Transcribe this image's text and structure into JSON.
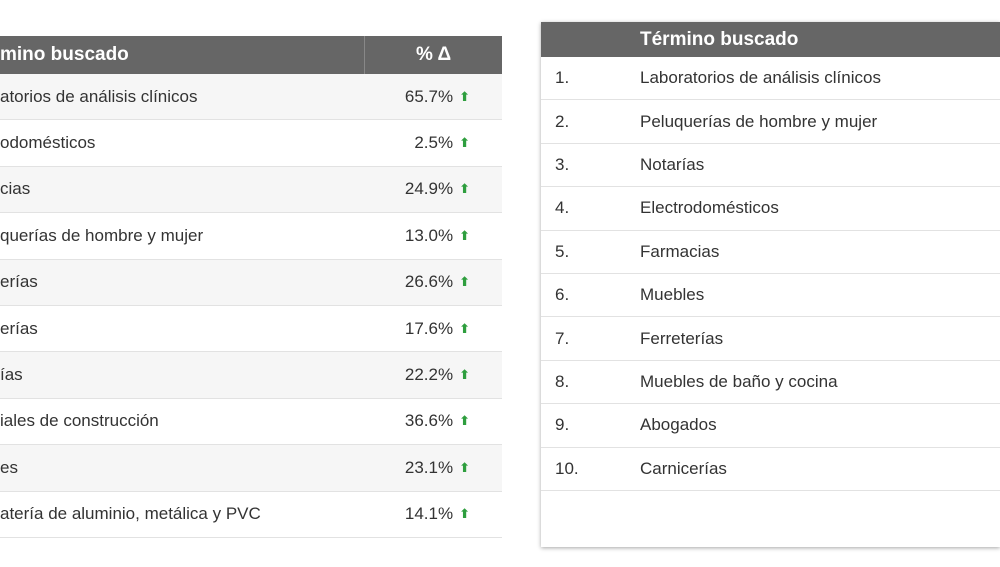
{
  "left_table": {
    "header": [
      "mino buscado",
      "% Δ"
    ],
    "rows": [
      [
        "atorios de análisis clínicos",
        "65.7%"
      ],
      [
        "odomésticos",
        "2.5%"
      ],
      [
        "cias",
        "24.9%"
      ],
      [
        "querías de hombre y mujer",
        "13.0%"
      ],
      [
        "erías",
        "26.6%"
      ],
      [
        "erías",
        "17.6%"
      ],
      [
        "ías",
        "22.2%"
      ],
      [
        "iales de construcción",
        "36.6%"
      ],
      [
        "es",
        "23.1%"
      ],
      [
        "atería de aluminio, metálica y PVC",
        "14.1%"
      ]
    ]
  },
  "right_table": {
    "header": "Término buscado",
    "rows": [
      [
        "1.",
        "Laboratorios de análisis clínicos"
      ],
      [
        "2.",
        "Peluquerías de hombre y mujer"
      ],
      [
        "3.",
        "Notarías"
      ],
      [
        "4.",
        "Electrodomésticos"
      ],
      [
        "5.",
        "Farmacias"
      ],
      [
        "6.",
        "Muebles"
      ],
      [
        "7.",
        "Ferreterías"
      ],
      [
        "8.",
        "Muebles de baño y cocina"
      ],
      [
        "9.",
        "Abogados"
      ],
      [
        "10.",
        "Carnicerías"
      ]
    ]
  }
}
